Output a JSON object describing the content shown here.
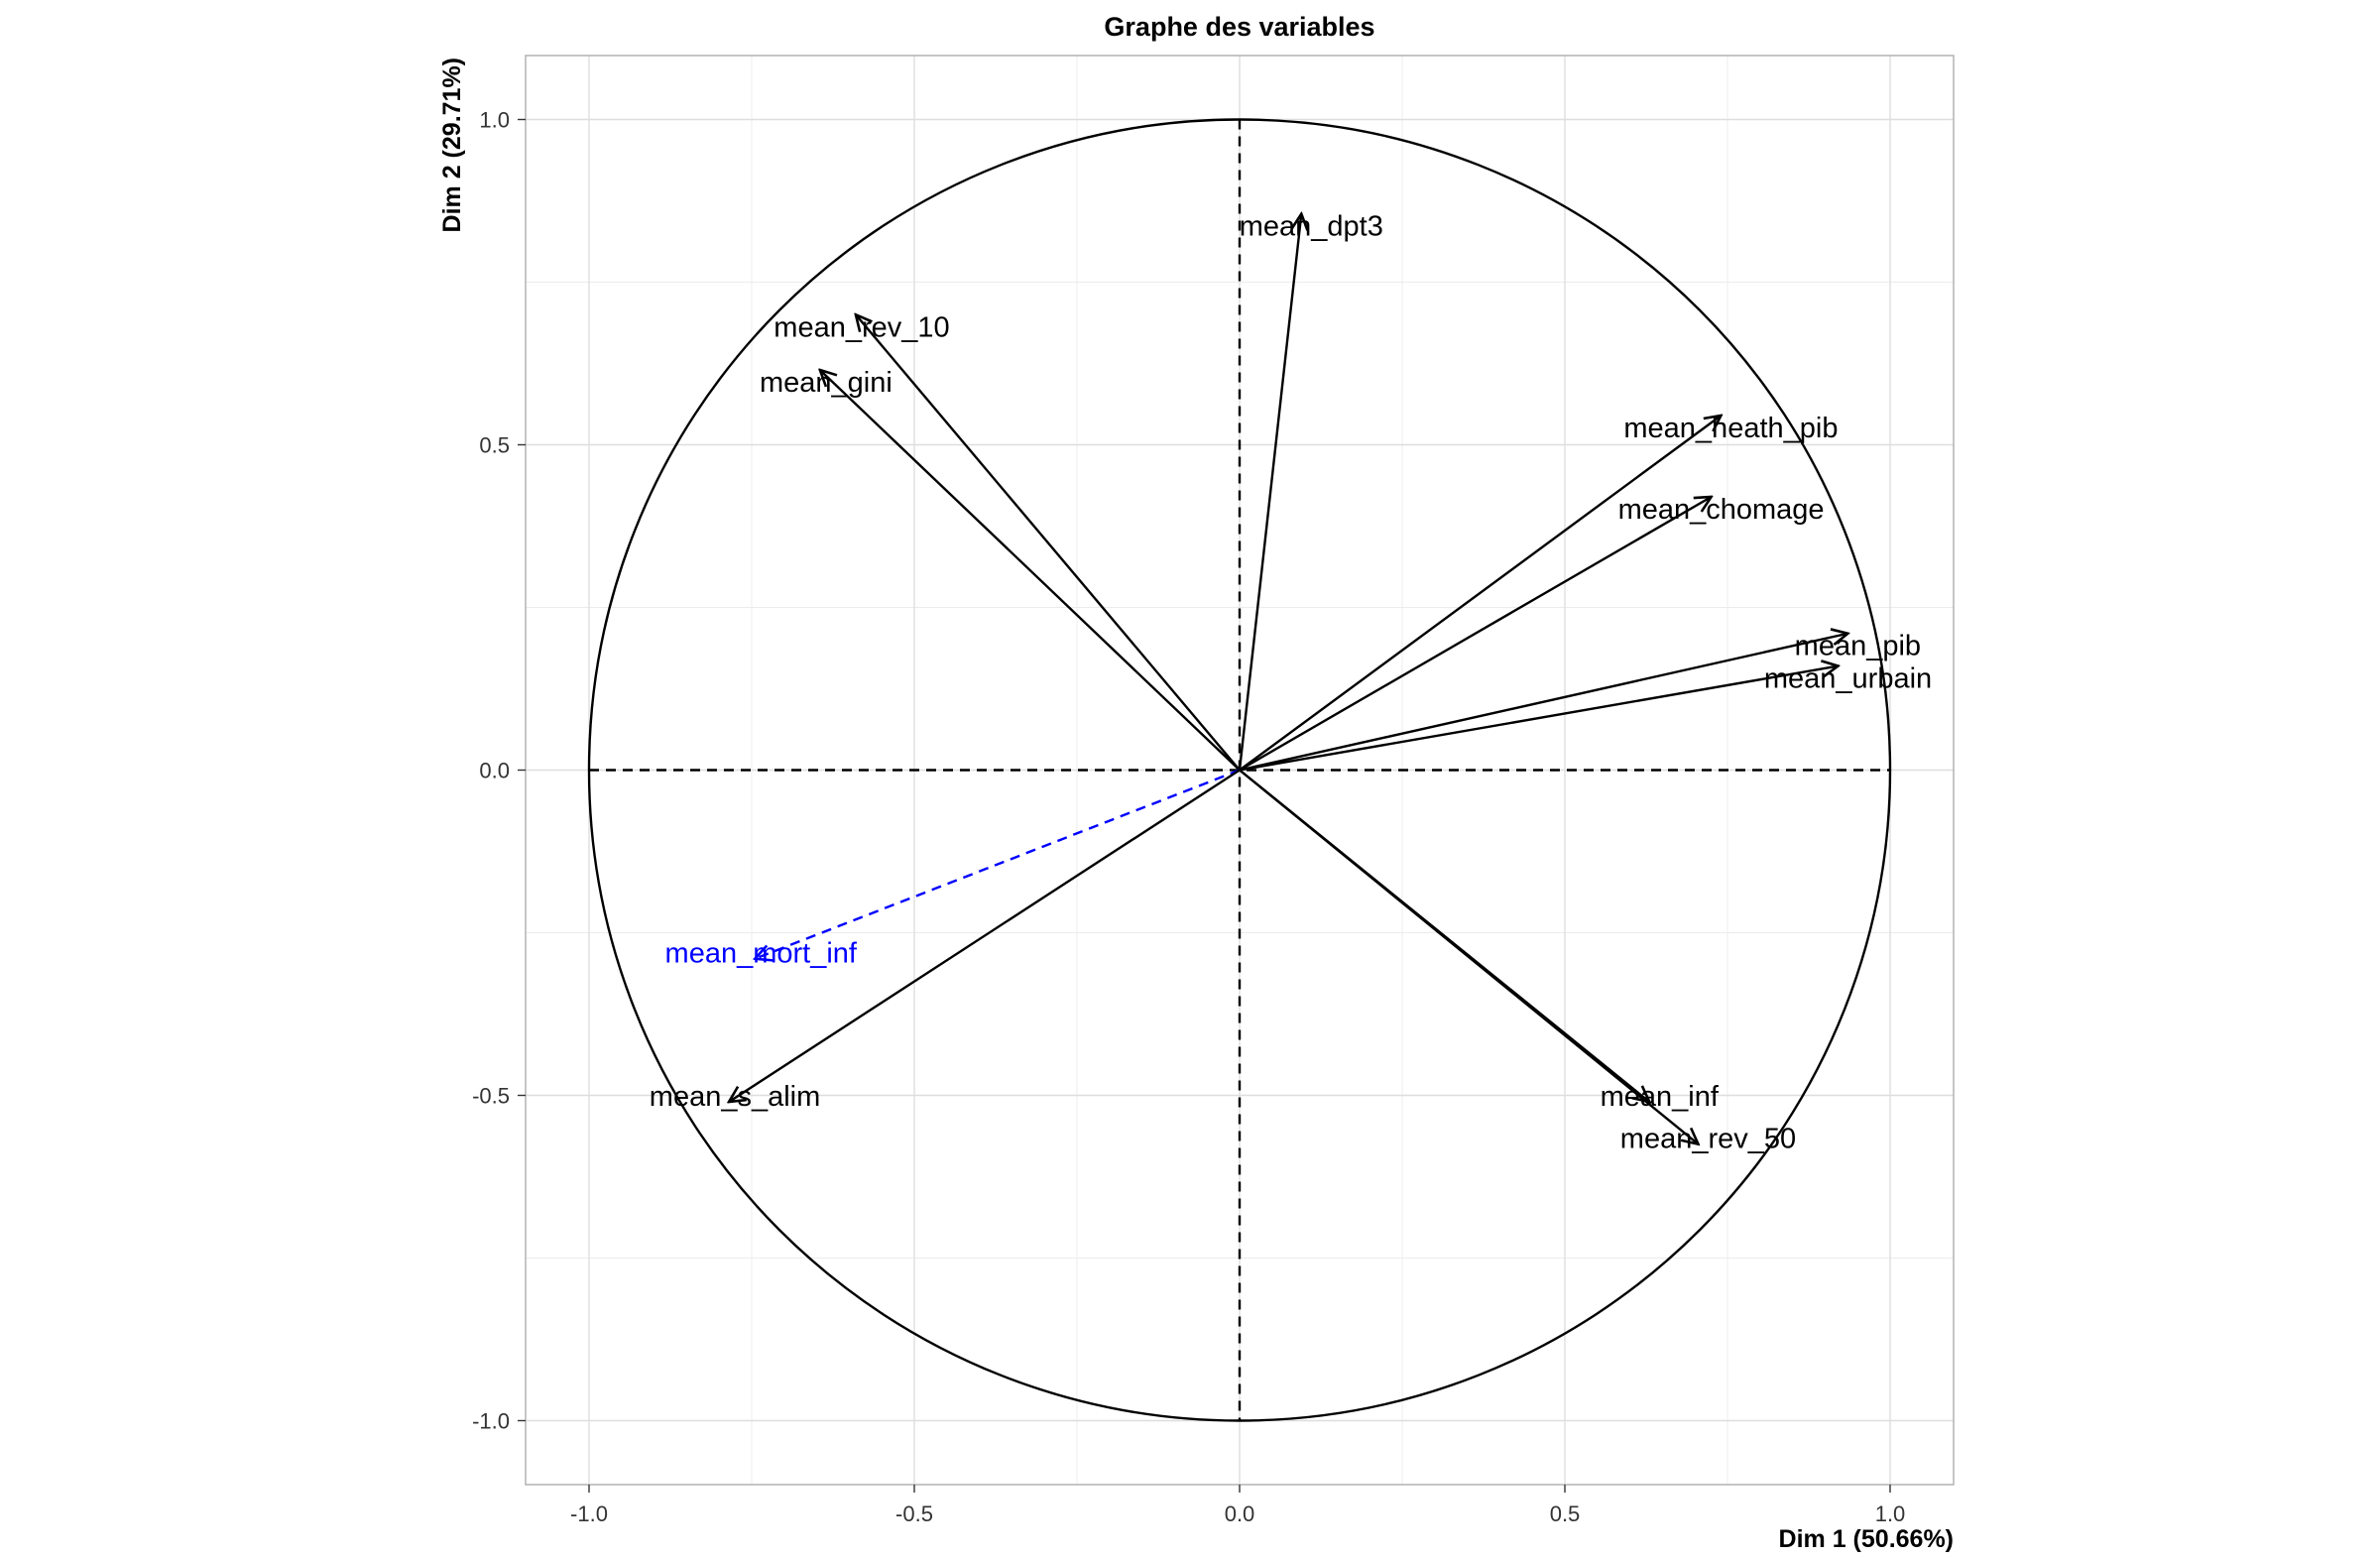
{
  "chart_data": {
    "type": "scatter",
    "subtype": "pca-variable-correlation-circle",
    "title": "Graphe des variables",
    "xlabel": "Dim 1 (50.66%)",
    "ylabel": "Dim 2 (29.71%)",
    "xlim": [
      -1.1,
      1.1
    ],
    "ylim": [
      -1.1,
      1.1
    ],
    "xticks": [
      -1.0,
      -0.5,
      0.0,
      0.5,
      1.0
    ],
    "yticks": [
      -1.0,
      -0.5,
      0.0,
      0.5,
      1.0
    ],
    "xtick_labels": [
      "-1.0",
      "-0.5",
      "0.0",
      "0.5",
      "1.0"
    ],
    "ytick_labels": [
      "-1.0",
      "-0.5",
      "0.0",
      "0.5",
      "1.0"
    ],
    "grid": true,
    "unit_circle": true,
    "reference_lines": "dashed at x=0 and y=0",
    "colors": {
      "active": "#000000",
      "supplementary": "#0000ff",
      "grid": "#dedede",
      "panel_border": "#b3b3b3"
    },
    "variables": [
      {
        "name": "mean_dpt3",
        "x": 0.095,
        "y": 0.855,
        "supplementary": false
      },
      {
        "name": "mean_rev_10",
        "x": -0.59,
        "y": 0.7,
        "supplementary": false
      },
      {
        "name": "mean_gini",
        "x": -0.645,
        "y": 0.615,
        "supplementary": false
      },
      {
        "name": "mean_heath_pib",
        "x": 0.74,
        "y": 0.545,
        "supplementary": false
      },
      {
        "name": "mean_chomage",
        "x": 0.725,
        "y": 0.42,
        "supplementary": false
      },
      {
        "name": "mean_pib",
        "x": 0.935,
        "y": 0.21,
        "supplementary": false
      },
      {
        "name": "mean_urbain",
        "x": 0.92,
        "y": 0.16,
        "supplementary": false
      },
      {
        "name": "mean_mort_inf",
        "x": -0.745,
        "y": -0.29,
        "supplementary": true
      },
      {
        "name": "mean_s_alim",
        "x": -0.785,
        "y": -0.51,
        "supplementary": false
      },
      {
        "name": "mean_inf",
        "x": 0.63,
        "y": -0.51,
        "supplementary": false
      },
      {
        "name": "mean_rev_50",
        "x": 0.705,
        "y": -0.575,
        "supplementary": false
      }
    ]
  }
}
